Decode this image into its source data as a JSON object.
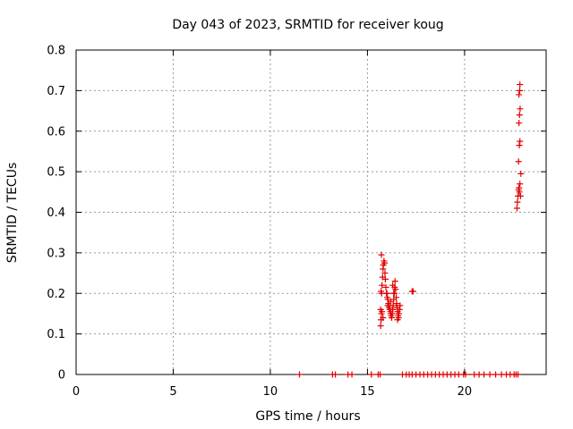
{
  "chart_data": {
    "type": "scatter",
    "title": "Day 043 of 2023, SRMTID for receiver koug",
    "xlabel": "GPS time / hours",
    "ylabel": "SRMTID / TECUs",
    "xlim": [
      0,
      24.2
    ],
    "ylim": [
      0,
      0.8
    ],
    "xticks": [
      "0",
      "5",
      "10",
      "15",
      "20"
    ],
    "xtick_values": [
      0,
      5,
      10,
      15,
      20
    ],
    "yticks": [
      "0",
      "0.1",
      "0.2",
      "0.3",
      "0.4",
      "0.5",
      "0.6",
      "0.7",
      "0.8"
    ],
    "ytick_values": [
      0,
      0.1,
      0.2,
      0.3,
      0.4,
      0.5,
      0.6,
      0.7,
      0.8
    ],
    "grid": true,
    "marker": "+",
    "marker_color": "#e00000",
    "points": [
      [
        11.5,
        0
      ],
      [
        13.2,
        0
      ],
      [
        13.35,
        0
      ],
      [
        14.0,
        0
      ],
      [
        14.2,
        0
      ],
      [
        15.2,
        0
      ],
      [
        15.55,
        0
      ],
      [
        15.65,
        0
      ],
      [
        16.8,
        0
      ],
      [
        17.0,
        0
      ],
      [
        17.15,
        0
      ],
      [
        17.3,
        0
      ],
      [
        17.5,
        0
      ],
      [
        17.7,
        0
      ],
      [
        17.9,
        0
      ],
      [
        18.1,
        0
      ],
      [
        18.3,
        0
      ],
      [
        18.5,
        0
      ],
      [
        18.7,
        0
      ],
      [
        18.9,
        0
      ],
      [
        19.1,
        0
      ],
      [
        19.3,
        0
      ],
      [
        19.5,
        0
      ],
      [
        19.7,
        0
      ],
      [
        19.95,
        0
      ],
      [
        20.05,
        0
      ],
      [
        20.5,
        0
      ],
      [
        20.75,
        0
      ],
      [
        21.0,
        0
      ],
      [
        21.3,
        0
      ],
      [
        21.6,
        0
      ],
      [
        21.9,
        0
      ],
      [
        22.15,
        0
      ],
      [
        22.35,
        0
      ],
      [
        22.55,
        0
      ],
      [
        22.65,
        0
      ],
      [
        22.75,
        0
      ],
      [
        15.68,
        0.12
      ],
      [
        15.7,
        0.135
      ],
      [
        15.72,
        0.15
      ],
      [
        15.75,
        0.155
      ],
      [
        15.68,
        0.16
      ],
      [
        15.8,
        0.14
      ],
      [
        15.7,
        0.205
      ],
      [
        15.73,
        0.2
      ],
      [
        15.75,
        0.22
      ],
      [
        15.78,
        0.24
      ],
      [
        15.8,
        0.26
      ],
      [
        15.82,
        0.27
      ],
      [
        15.72,
        0.295
      ],
      [
        15.85,
        0.28
      ],
      [
        15.88,
        0.275
      ],
      [
        15.9,
        0.25
      ],
      [
        15.92,
        0.235
      ],
      [
        15.95,
        0.215
      ],
      [
        16.0,
        0.2
      ],
      [
        16.02,
        0.19
      ],
      [
        16.05,
        0.185
      ],
      [
        16.08,
        0.175
      ],
      [
        16.1,
        0.17
      ],
      [
        16.12,
        0.165
      ],
      [
        16.15,
        0.16
      ],
      [
        16.18,
        0.155
      ],
      [
        16.2,
        0.15
      ],
      [
        16.22,
        0.145
      ],
      [
        16.25,
        0.14
      ],
      [
        16.28,
        0.15
      ],
      [
        16.3,
        0.16
      ],
      [
        16.32,
        0.17
      ],
      [
        16.35,
        0.185
      ],
      [
        16.38,
        0.2
      ],
      [
        16.4,
        0.215
      ],
      [
        16.42,
        0.23
      ],
      [
        16.45,
        0.21
      ],
      [
        16.48,
        0.19
      ],
      [
        16.5,
        0.175
      ],
      [
        16.52,
        0.165
      ],
      [
        16.55,
        0.155
      ],
      [
        16.58,
        0.145
      ],
      [
        16.6,
        0.14
      ],
      [
        16.62,
        0.15
      ],
      [
        16.65,
        0.16
      ],
      [
        16.68,
        0.17
      ],
      [
        16.55,
        0.135
      ],
      [
        16.3,
        0.22
      ],
      [
        16.35,
        0.2
      ],
      [
        16.2,
        0.18
      ],
      [
        16.05,
        0.17
      ],
      [
        15.98,
        0.2
      ],
      [
        17.3,
        0.205
      ],
      [
        17.35,
        0.205
      ],
      [
        22.7,
        0.41
      ],
      [
        22.72,
        0.425
      ],
      [
        22.75,
        0.44
      ],
      [
        22.78,
        0.455
      ],
      [
        22.8,
        0.46
      ],
      [
        22.82,
        0.45
      ],
      [
        22.85,
        0.47
      ],
      [
        22.88,
        0.44
      ],
      [
        22.9,
        0.495
      ],
      [
        22.78,
        0.525
      ],
      [
        22.82,
        0.565
      ],
      [
        22.85,
        0.575
      ],
      [
        22.8,
        0.62
      ],
      [
        22.83,
        0.64
      ],
      [
        22.86,
        0.655
      ],
      [
        22.8,
        0.69
      ],
      [
        22.84,
        0.7
      ],
      [
        22.85,
        0.715
      ]
    ]
  }
}
